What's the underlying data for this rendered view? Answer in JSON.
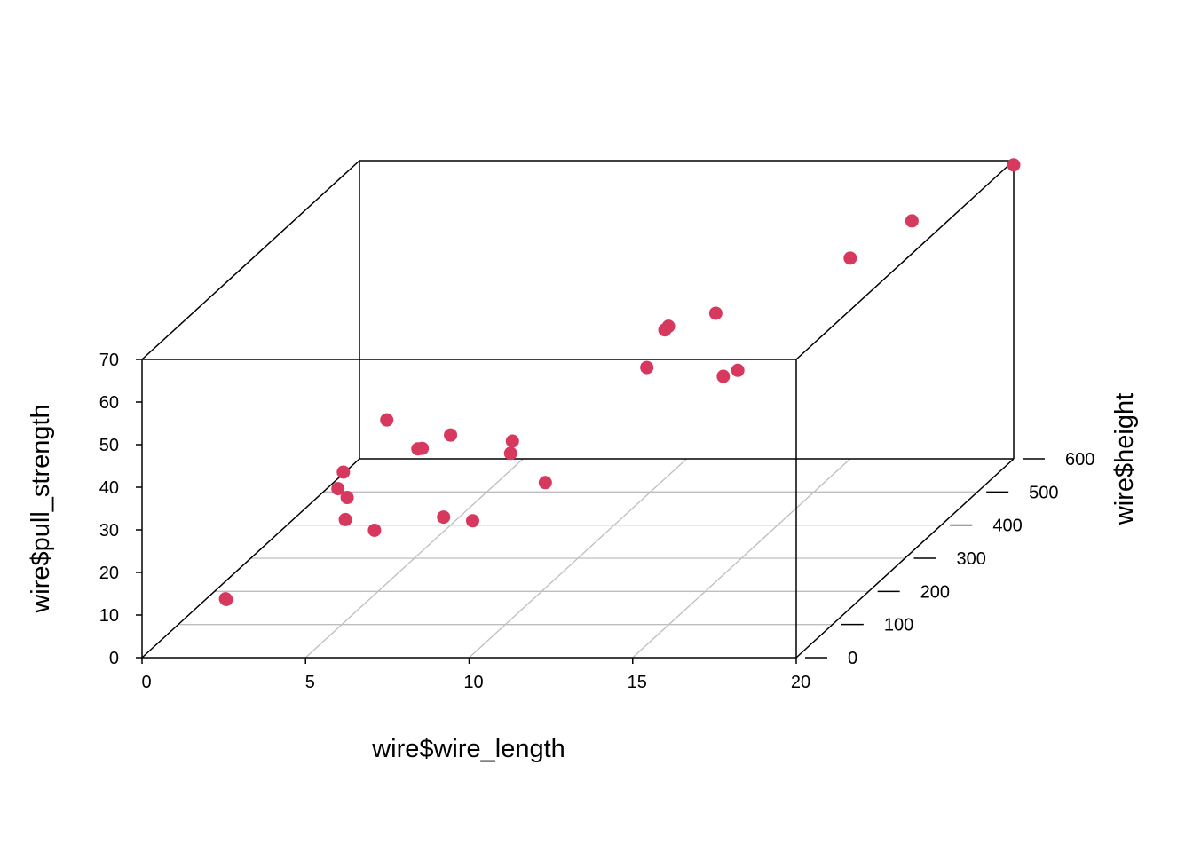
{
  "chart_data": {
    "type": "scatter",
    "subtype": "3d-scatterplot",
    "title": "",
    "xlabel": "wire$wire_length",
    "ylabel": "wire$height",
    "zlabel": "wire$pull_strength",
    "xlim": [
      0,
      20
    ],
    "ylim": [
      0,
      600
    ],
    "zlim": [
      0,
      70
    ],
    "x_ticks": [
      "0",
      "5",
      "10",
      "15",
      "20"
    ],
    "y_ticks": [
      "0",
      "100",
      "200",
      "300",
      "400",
      "500",
      "600"
    ],
    "z_ticks": [
      "0",
      "10",
      "20",
      "30",
      "40",
      "50",
      "60",
      "70"
    ],
    "grid": true,
    "box": true,
    "colors": {
      "point": "#D6385E",
      "grid": "#BEBEBE",
      "box": "#000000"
    },
    "series": [
      {
        "points": [
          {
            "x": 2,
            "y": 50,
            "z": 9.95
          },
          {
            "x": 8,
            "y": 110,
            "z": 24.45
          },
          {
            "x": 11,
            "y": 120,
            "z": 31.75
          },
          {
            "x": 10,
            "y": 550,
            "z": 35.0
          },
          {
            "x": 8,
            "y": 295,
            "z": 25.02
          },
          {
            "x": 4,
            "y": 200,
            "z": 16.86
          },
          {
            "x": 2,
            "y": 375,
            "z": 14.38
          },
          {
            "x": 2,
            "y": 52,
            "z": 9.6
          },
          {
            "x": 9,
            "y": 100,
            "z": 24.35
          },
          {
            "x": 8,
            "y": 300,
            "z": 27.5
          },
          {
            "x": 4,
            "y": 412,
            "z": 17.08
          },
          {
            "x": 11,
            "y": 400,
            "z": 37.0
          },
          {
            "x": 12,
            "y": 500,
            "z": 41.95
          },
          {
            "x": 2,
            "y": 360,
            "z": 11.66
          },
          {
            "x": 4,
            "y": 205,
            "z": 21.65
          },
          {
            "x": 4,
            "y": 400,
            "z": 17.89
          },
          {
            "x": 20,
            "y": 600,
            "z": 69.0
          },
          {
            "x": 1,
            "y": 585,
            "z": 10.3
          },
          {
            "x": 10,
            "y": 540,
            "z": 34.93
          },
          {
            "x": 15,
            "y": 250,
            "z": 46.59
          },
          {
            "x": 15,
            "y": 290,
            "z": 44.88
          },
          {
            "x": 16,
            "y": 510,
            "z": 54.12
          },
          {
            "x": 17,
            "y": 590,
            "z": 56.63
          },
          {
            "x": 6,
            "y": 100,
            "z": 22.13
          },
          {
            "x": 5,
            "y": 400,
            "z": 21.15
          }
        ]
      }
    ]
  }
}
